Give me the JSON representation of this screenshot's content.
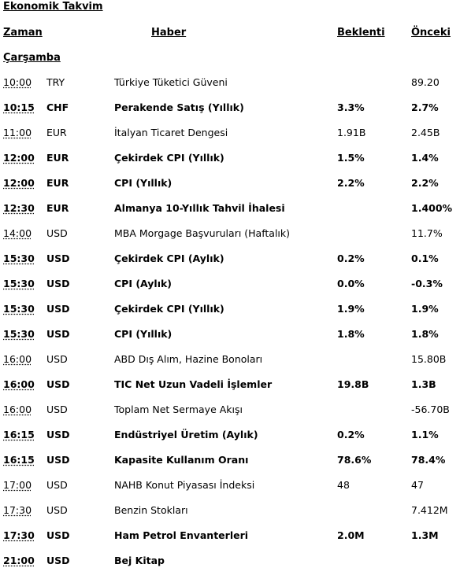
{
  "title": "Ekonomik Takvim",
  "headers": {
    "time": "Zaman",
    "news": "Haber",
    "expected": "Beklenti",
    "previous": "Önceki"
  },
  "day": "Çarşamba",
  "rows": [
    {
      "time": "10:00",
      "currency": "TRY",
      "news": "Türkiye Tüketici  Güveni",
      "expected": "",
      "previous": "89.20",
      "bold": false
    },
    {
      "time": "10:15",
      "currency": "CHF",
      "news": "Perakende Satış (Yıllık)",
      "expected": "3.3%",
      "previous": "2.7%",
      "bold": true
    },
    {
      "time": "11:00",
      "currency": "EUR",
      "news": "İtalyan Ticaret Dengesi",
      "expected": "1.91B",
      "previous": "2.45B",
      "bold": false
    },
    {
      "time": "12:00",
      "currency": "EUR",
      "news": "Çekirdek CPI (Yıllık)",
      "expected": "1.5%",
      "previous": "1.4%",
      "bold": true
    },
    {
      "time": "12:00",
      "currency": "EUR",
      "news": "CPI (Yıllık)",
      "expected": "2.2%",
      "previous": "2.2%",
      "bold": true
    },
    {
      "time": "12:30",
      "currency": "EUR",
      "news": "Almanya 10-Yıllık  Tahvil İhalesi",
      "expected": "",
      "previous": " 1.400%",
      "bold": true
    },
    {
      "time": "14:00",
      "currency": "USD",
      "news": "MBA Morgage Başvuruları  (Haftalık)",
      "expected": "",
      "previous": "11.7%",
      "bold": false
    },
    {
      "time": "15:30",
      "currency": "USD",
      "news": "Çekirdek CPI (Aylık)",
      "expected": "0.2%",
      "previous": "0.1%",
      "bold": true
    },
    {
      "time": "15:30",
      "currency": "USD",
      "news": "CPI (Aylık)",
      "expected": "0.0%",
      "previous": "-0.3%",
      "bold": true
    },
    {
      "time": "15:30",
      "currency": "USD",
      "news": "Çekirdek CPI (Yıllık)",
      "expected": "1.9%",
      "previous": "1.9%",
      "bold": true
    },
    {
      "time": "15:30",
      "currency": "USD",
      "news": "CPI (Yıllık)",
      "expected": "1.8%",
      "previous": "1.8%",
      "bold": true
    },
    {
      "time": "16:00",
      "currency": "USD",
      "news": "ABD Dış Alım,  Hazine  Bonoları",
      "expected": "",
      "previous": "15.80B",
      "bold": false
    },
    {
      "time": "16:00",
      "currency": "USD",
      "news": "TIC Net Uzun Vadeli İşlemler",
      "expected": "19.8B",
      "previous": "1.3B",
      "bold": true
    },
    {
      "time": "16:00",
      "currency": "USD",
      "news": "Toplam Net Sermaye Akışı",
      "expected": "",
      "previous": "-56.70B",
      "bold": false
    },
    {
      "time": "16:15",
      "currency": "USD",
      "news": "Endüstriyel Üretim (Aylık)",
      "expected": "0.2%",
      "previous": "1.1%",
      "bold": true
    },
    {
      "time": "16:15",
      "currency": "USD",
      "news": "Kapasite Kullanım  Oranı",
      "expected": "78.6%",
      "previous": "78.4%",
      "bold": true
    },
    {
      "time": "17:00",
      "currency": "USD",
      "news": "NAHB Konut Piyasası İndeksi",
      "expected": "48",
      "previous": "47",
      "bold": false
    },
    {
      "time": "17:30",
      "currency": "USD",
      "news": "Benzin Stokları",
      "expected": "",
      "previous": "7.412M",
      "bold": false
    },
    {
      "time": "17:30",
      "currency": "USD",
      "news": "Ham Petrol Envanterleri",
      "expected": "2.0M",
      "previous": "1.3M",
      "bold": true
    },
    {
      "time": "21:00",
      "currency": "USD",
      "news": "Bej Kitap",
      "expected": "",
      "previous": "",
      "bold": true
    }
  ]
}
